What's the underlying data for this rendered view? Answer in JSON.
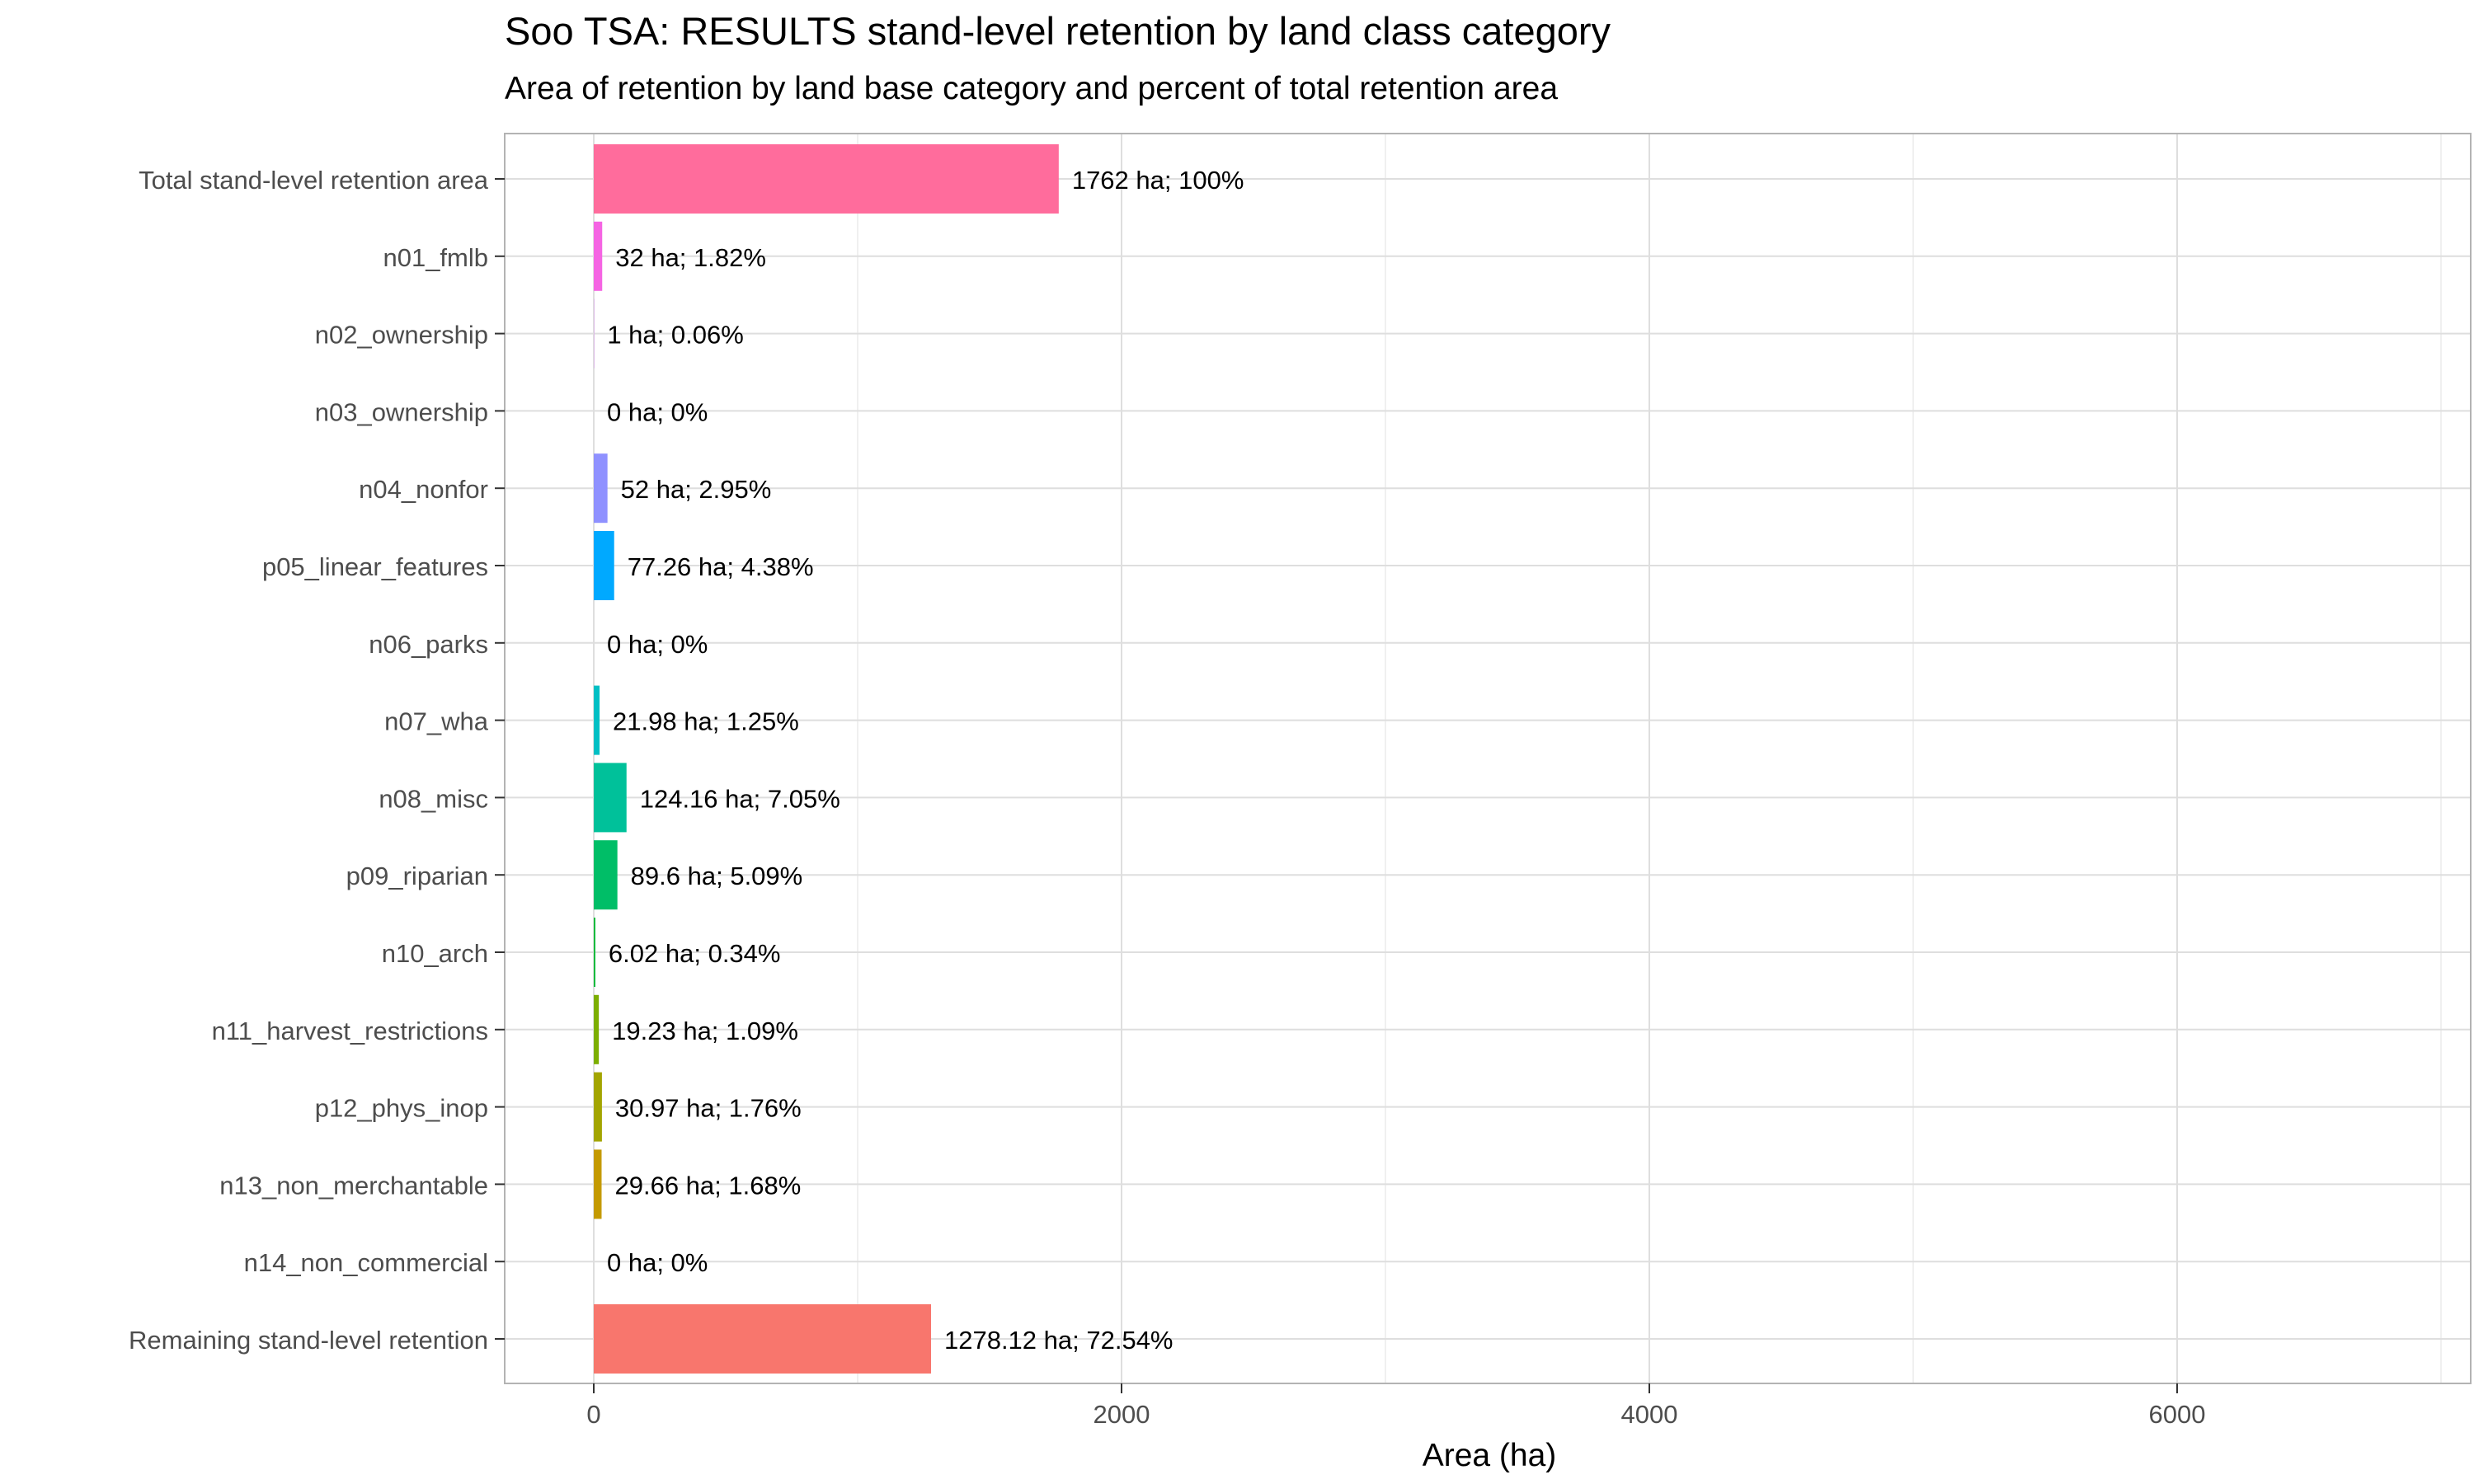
{
  "chart_data": {
    "type": "bar",
    "orientation": "horizontal",
    "title": "Soo TSA: RESULTS stand-level retention by land class category",
    "subtitle": "Area of retention by land base category and percent of total retention area",
    "xlabel": "Area (ha)",
    "ylabel": "",
    "xlim": [
      -330,
      7000
    ],
    "xticks": [
      0,
      2000,
      4000,
      6000
    ],
    "grid": true,
    "legend": "none",
    "categories": [
      "Total stand-level retention area",
      "n01_fmlb",
      "n02_ownership",
      "n03_ownership",
      "n04_nonfor",
      "p05_linear_features",
      "n06_parks",
      "n07_wha",
      "n08_misc",
      "p09_riparian",
      "n10_arch",
      "n11_harvest_restrictions",
      "p12_phys_inop",
      "n13_non_merchantable",
      "n14_non_commercial",
      "Remaining stand-level retention"
    ],
    "values": [
      1762,
      32,
      1,
      0,
      52,
      77.26,
      0,
      21.98,
      124.16,
      89.6,
      6.02,
      19.23,
      30.97,
      29.66,
      0,
      1278.12
    ],
    "data_labels": [
      "1762 ha; 100%",
      "32 ha; 1.82%",
      "1 ha; 0.06%",
      "0 ha; 0%",
      "52 ha; 2.95%",
      "77.26 ha; 4.38%",
      "0 ha; 0%",
      "21.98 ha; 1.25%",
      "124.16 ha; 7.05%",
      "89.6 ha; 5.09%",
      "6.02 ha; 0.34%",
      "19.23 ha; 1.09%",
      "30.97 ha; 1.76%",
      "29.66 ha; 1.68%",
      "0 ha; 0%",
      "1278.12 ha; 72.54%"
    ],
    "colors": [
      "#FF6C9C",
      "#F564E3",
      "#DC71FA",
      "#B983FF",
      "#8F91FF",
      "#00A9FF",
      "#00B8E7",
      "#00BFC4",
      "#00C19A",
      "#00BE67",
      "#00BA38",
      "#7CAE00",
      "#A3A500",
      "#C49A00",
      "#DE8C00",
      "#F8766D"
    ]
  }
}
